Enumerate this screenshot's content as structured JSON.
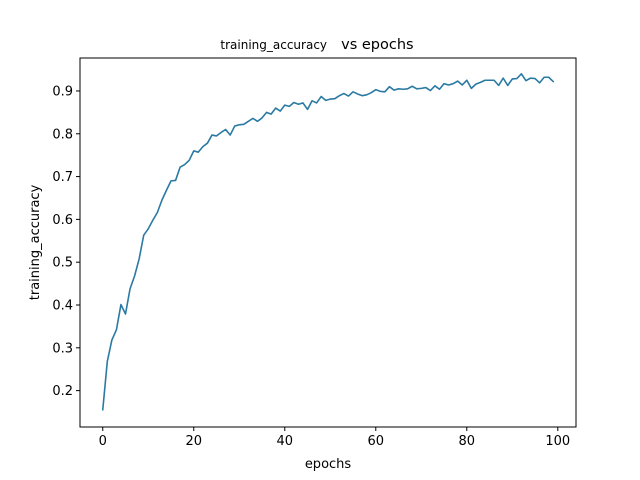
{
  "chart_data": {
    "type": "line",
    "title_parts": [
      "training_accuracy",
      "vs epochs"
    ],
    "xlabel": "epochs",
    "ylabel": "training_accuracy",
    "xlim": [
      -5.0,
      104.0
    ],
    "ylim": [
      0.115,
      0.977
    ],
    "xticks": [
      0,
      20,
      40,
      60,
      80,
      100
    ],
    "yticks": [
      0.2,
      0.3,
      0.4,
      0.5,
      0.6,
      0.7,
      0.8,
      0.9
    ],
    "ytick_labels": [
      "0.2",
      "0.3",
      "0.4",
      "0.5",
      "0.6",
      "0.7",
      "0.8",
      "0.9"
    ],
    "grid": false,
    "line_color": "#2a7aa3",
    "series": [
      {
        "x": [
          0,
          1,
          2,
          3,
          4,
          5,
          6,
          7,
          8,
          9,
          10,
          11,
          12,
          13,
          14,
          15,
          16,
          17,
          18,
          19,
          20,
          21,
          22,
          23,
          24,
          25,
          26,
          27,
          28,
          29,
          30,
          31,
          32,
          33,
          34,
          35,
          36,
          37,
          38,
          39,
          40,
          41,
          42,
          43,
          44,
          45,
          46,
          47,
          48,
          49,
          50,
          51,
          52,
          53,
          54,
          55,
          56,
          57,
          58,
          59,
          60,
          61,
          62,
          63,
          64,
          65,
          66,
          67,
          68,
          69,
          70,
          71,
          72,
          73,
          74,
          75,
          76,
          77,
          78,
          79,
          80,
          81,
          82,
          83,
          84,
          85,
          86,
          87,
          88,
          89,
          90,
          91,
          92,
          93,
          94,
          95,
          96,
          97,
          98,
          99
        ],
        "values": [
          0.155,
          0.268,
          0.318,
          0.342,
          0.401,
          0.379,
          0.438,
          0.468,
          0.508,
          0.563,
          0.578,
          0.598,
          0.616,
          0.645,
          0.668,
          0.69,
          0.691,
          0.722,
          0.728,
          0.738,
          0.76,
          0.757,
          0.77,
          0.778,
          0.797,
          0.795,
          0.803,
          0.81,
          0.797,
          0.818,
          0.821,
          0.822,
          0.829,
          0.836,
          0.829,
          0.837,
          0.85,
          0.846,
          0.86,
          0.853,
          0.867,
          0.864,
          0.873,
          0.869,
          0.872,
          0.857,
          0.877,
          0.872,
          0.887,
          0.878,
          0.881,
          0.882,
          0.889,
          0.894,
          0.888,
          0.898,
          0.893,
          0.889,
          0.891,
          0.896,
          0.903,
          0.899,
          0.898,
          0.91,
          0.902,
          0.905,
          0.904,
          0.905,
          0.911,
          0.905,
          0.906,
          0.908,
          0.901,
          0.912,
          0.904,
          0.917,
          0.914,
          0.917,
          0.923,
          0.914,
          0.925,
          0.906,
          0.916,
          0.92,
          0.925,
          0.925,
          0.925,
          0.913,
          0.93,
          0.913,
          0.928,
          0.929,
          0.94,
          0.924,
          0.93,
          0.929,
          0.919,
          0.932,
          0.932,
          0.922
        ]
      }
    ]
  }
}
